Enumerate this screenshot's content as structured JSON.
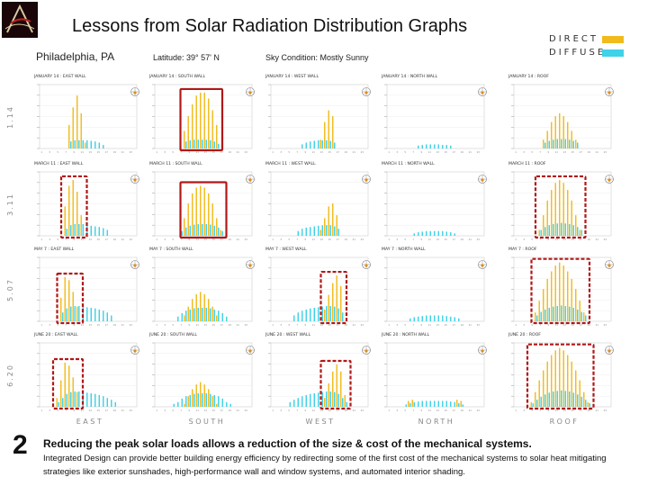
{
  "title": "Lessons from Solar Radiation Distribution Graphs",
  "header": {
    "city": "Philadelphia, PA",
    "latitude": "Latitude: 39° 57' N",
    "sky": "Sky Condition: Mostly Sunny"
  },
  "legend": [
    {
      "label": "DIRECT",
      "color": "#f2bb1d"
    },
    {
      "label": "DIFFUSE",
      "color": "#3fd2e8"
    }
  ],
  "row_labels": [
    "1.14",
    "3.11",
    "5.07",
    "6.20"
  ],
  "column_labels": [
    "EAST",
    "SOUTH",
    "WEST",
    "NORTH",
    "ROOF"
  ],
  "colors": {
    "direct": "#f2bb1d",
    "diffuse": "#3fd2e8",
    "highlight": "#b01818",
    "accent": "#7a1010"
  },
  "chart_data": {
    "type": "bar",
    "hours": [
      1,
      2,
      3,
      4,
      5,
      6,
      7,
      8,
      9,
      10,
      11,
      12,
      13,
      14,
      15,
      16,
      17,
      18,
      19,
      20,
      21,
      22,
      23,
      24
    ],
    "panels": [
      {
        "title": "JANUARY 14 : EAST WALL",
        "highlight": false,
        "direct": [
          0,
          0,
          0,
          0,
          0,
          0,
          0,
          0.4,
          0.7,
          0.9,
          0.6,
          0.1,
          0,
          0,
          0,
          0,
          0,
          0,
          0,
          0,
          0,
          0,
          0,
          0
        ],
        "diffuse": [
          0,
          0,
          0,
          0,
          0,
          0,
          0,
          0.12,
          0.14,
          0.14,
          0.14,
          0.14,
          0.13,
          0.12,
          0.1,
          0.06,
          0,
          0,
          0,
          0,
          0,
          0,
          0,
          0
        ]
      },
      {
        "title": "JANUARY 14 : SOUTH WALL",
        "highlight": true,
        "direct": [
          0,
          0,
          0,
          0,
          0,
          0,
          0,
          0.3,
          0.55,
          0.75,
          0.9,
          0.95,
          0.95,
          0.85,
          0.65,
          0.4,
          0,
          0,
          0,
          0,
          0,
          0,
          0,
          0
        ],
        "diffuse": [
          0,
          0,
          0,
          0,
          0,
          0,
          0,
          0.12,
          0.14,
          0.15,
          0.15,
          0.15,
          0.15,
          0.14,
          0.12,
          0.08,
          0,
          0,
          0,
          0,
          0,
          0,
          0,
          0
        ]
      },
      {
        "title": "JANUARY 14 : WEST WALL",
        "highlight": false,
        "direct": [
          0,
          0,
          0,
          0,
          0,
          0,
          0,
          0,
          0,
          0,
          0,
          0,
          0.15,
          0.45,
          0.65,
          0.55,
          0,
          0,
          0,
          0,
          0,
          0,
          0,
          0
        ],
        "diffuse": [
          0,
          0,
          0,
          0,
          0,
          0,
          0,
          0.07,
          0.1,
          0.12,
          0.13,
          0.14,
          0.14,
          0.14,
          0.13,
          0.1,
          0,
          0,
          0,
          0,
          0,
          0,
          0,
          0
        ]
      },
      {
        "title": "JANUARY 14 : NORTH WALL",
        "highlight": false,
        "direct": [
          0,
          0,
          0,
          0,
          0,
          0,
          0,
          0,
          0,
          0,
          0,
          0,
          0,
          0,
          0,
          0,
          0,
          0,
          0,
          0,
          0,
          0,
          0,
          0
        ],
        "diffuse": [
          0,
          0,
          0,
          0,
          0,
          0,
          0,
          0.05,
          0.06,
          0.07,
          0.07,
          0.07,
          0.07,
          0.06,
          0.06,
          0.05,
          0,
          0,
          0,
          0,
          0,
          0,
          0,
          0
        ]
      },
      {
        "title": "JANUARY 14 : ROOF",
        "highlight": false,
        "direct": [
          0,
          0,
          0,
          0,
          0,
          0,
          0,
          0.15,
          0.3,
          0.45,
          0.55,
          0.6,
          0.55,
          0.45,
          0.3,
          0.15,
          0,
          0,
          0,
          0,
          0,
          0,
          0,
          0
        ],
        "diffuse": [
          0,
          0,
          0,
          0,
          0,
          0,
          0,
          0.1,
          0.13,
          0.15,
          0.16,
          0.16,
          0.16,
          0.15,
          0.13,
          0.1,
          0,
          0,
          0,
          0,
          0,
          0,
          0,
          0
        ]
      },
      {
        "title": "MARCH 11 : EAST WALL",
        "highlight": true,
        "direct": [
          0,
          0,
          0,
          0,
          0,
          0,
          0.5,
          0.85,
          0.95,
          0.75,
          0.35,
          0,
          0,
          0,
          0,
          0,
          0,
          0,
          0,
          0,
          0,
          0,
          0,
          0
        ],
        "diffuse": [
          0,
          0,
          0,
          0,
          0,
          0,
          0.12,
          0.18,
          0.2,
          0.2,
          0.2,
          0.18,
          0.17,
          0.16,
          0.15,
          0.13,
          0.1,
          0,
          0,
          0,
          0,
          0,
          0,
          0
        ]
      },
      {
        "title": "MARCH 11 : SOUTH WALL",
        "highlight": true,
        "direct": [
          0,
          0,
          0,
          0,
          0,
          0,
          0,
          0.3,
          0.55,
          0.72,
          0.82,
          0.85,
          0.82,
          0.72,
          0.55,
          0.3,
          0.1,
          0,
          0,
          0,
          0,
          0,
          0,
          0
        ],
        "diffuse": [
          0,
          0,
          0,
          0,
          0,
          0,
          0.08,
          0.14,
          0.17,
          0.19,
          0.2,
          0.2,
          0.2,
          0.19,
          0.17,
          0.14,
          0.08,
          0,
          0,
          0,
          0,
          0,
          0,
          0
        ]
      },
      {
        "title": "MARCH 11 : WEST WALL",
        "highlight": false,
        "direct": [
          0,
          0,
          0,
          0,
          0,
          0,
          0,
          0,
          0,
          0,
          0,
          0,
          0.1,
          0.3,
          0.5,
          0.55,
          0.35,
          0,
          0,
          0,
          0,
          0,
          0,
          0
        ],
        "diffuse": [
          0,
          0,
          0,
          0,
          0,
          0,
          0.08,
          0.12,
          0.14,
          0.15,
          0.16,
          0.17,
          0.18,
          0.18,
          0.18,
          0.16,
          0.12,
          0,
          0,
          0,
          0,
          0,
          0,
          0
        ]
      },
      {
        "title": "MARCH 11 : NORTH WALL",
        "highlight": false,
        "direct": [
          0,
          0,
          0,
          0,
          0,
          0,
          0,
          0,
          0,
          0,
          0,
          0,
          0,
          0,
          0,
          0,
          0,
          0,
          0,
          0,
          0,
          0,
          0,
          0
        ],
        "diffuse": [
          0,
          0,
          0,
          0,
          0,
          0,
          0.04,
          0.06,
          0.07,
          0.08,
          0.08,
          0.08,
          0.08,
          0.08,
          0.07,
          0.06,
          0.04,
          0,
          0,
          0,
          0,
          0,
          0,
          0
        ]
      },
      {
        "title": "MARCH 11 : ROOF",
        "highlight": true,
        "direct": [
          0,
          0,
          0,
          0,
          0,
          0,
          0.1,
          0.35,
          0.6,
          0.78,
          0.9,
          0.95,
          0.9,
          0.78,
          0.6,
          0.35,
          0.1,
          0,
          0,
          0,
          0,
          0,
          0,
          0
        ],
        "diffuse": [
          0,
          0,
          0,
          0,
          0,
          0,
          0.1,
          0.15,
          0.18,
          0.2,
          0.21,
          0.22,
          0.21,
          0.2,
          0.18,
          0.15,
          0.1,
          0,
          0,
          0,
          0,
          0,
          0,
          0
        ]
      },
      {
        "title": "MAY 7 : EAST WALL",
        "highlight": true,
        "direct": [
          0,
          0,
          0,
          0,
          0,
          0.4,
          0.75,
          0.7,
          0.5,
          0.25,
          0,
          0,
          0,
          0,
          0,
          0,
          0,
          0,
          0,
          0,
          0,
          0,
          0,
          0
        ],
        "diffuse": [
          0,
          0,
          0,
          0,
          0,
          0.15,
          0.22,
          0.25,
          0.26,
          0.26,
          0.25,
          0.24,
          0.23,
          0.22,
          0.2,
          0.18,
          0.15,
          0.1,
          0,
          0,
          0,
          0,
          0,
          0
        ]
      },
      {
        "title": "MAY 7 : SOUTH WALL",
        "highlight": false,
        "direct": [
          0,
          0,
          0,
          0,
          0,
          0,
          0,
          0.1,
          0.25,
          0.38,
          0.46,
          0.5,
          0.46,
          0.38,
          0.25,
          0.1,
          0,
          0,
          0,
          0,
          0,
          0,
          0,
          0
        ],
        "diffuse": [
          0,
          0,
          0,
          0,
          0,
          0.08,
          0.14,
          0.18,
          0.2,
          0.22,
          0.23,
          0.23,
          0.23,
          0.22,
          0.2,
          0.18,
          0.14,
          0.08,
          0,
          0,
          0,
          0,
          0,
          0
        ]
      },
      {
        "title": "MAY 7 : WEST WALL",
        "highlight": true,
        "direct": [
          0,
          0,
          0,
          0,
          0,
          0,
          0,
          0,
          0,
          0,
          0,
          0,
          0,
          0.2,
          0.45,
          0.65,
          0.78,
          0.6,
          0,
          0,
          0,
          0,
          0,
          0
        ],
        "diffuse": [
          0,
          0,
          0,
          0,
          0,
          0.1,
          0.15,
          0.18,
          0.2,
          0.22,
          0.23,
          0.24,
          0.25,
          0.26,
          0.26,
          0.25,
          0.22,
          0.15,
          0,
          0,
          0,
          0,
          0,
          0
        ]
      },
      {
        "title": "MAY 7 : NORTH WALL",
        "highlight": false,
        "direct": [
          0,
          0,
          0,
          0,
          0,
          0,
          0,
          0,
          0,
          0,
          0,
          0,
          0,
          0,
          0,
          0,
          0,
          0,
          0,
          0,
          0,
          0,
          0,
          0
        ],
        "diffuse": [
          0,
          0,
          0,
          0,
          0,
          0.05,
          0.07,
          0.08,
          0.09,
          0.1,
          0.1,
          0.1,
          0.1,
          0.1,
          0.09,
          0.08,
          0.07,
          0.05,
          0,
          0,
          0,
          0,
          0,
          0
        ]
      },
      {
        "title": "MAY 7 : ROOF",
        "highlight": true,
        "direct": [
          0,
          0,
          0,
          0,
          0,
          0.15,
          0.35,
          0.55,
          0.72,
          0.85,
          0.95,
          1.0,
          0.95,
          0.85,
          0.72,
          0.55,
          0.35,
          0.15,
          0,
          0,
          0,
          0,
          0,
          0
        ],
        "diffuse": [
          0,
          0,
          0,
          0,
          0,
          0.1,
          0.16,
          0.2,
          0.23,
          0.25,
          0.26,
          0.27,
          0.26,
          0.25,
          0.23,
          0.2,
          0.16,
          0.1,
          0,
          0,
          0,
          0,
          0,
          0
        ]
      },
      {
        "title": "JUNE 20 : EAST WALL",
        "highlight": true,
        "direct": [
          0,
          0,
          0,
          0,
          0.15,
          0.45,
          0.75,
          0.7,
          0.5,
          0.25,
          0,
          0,
          0,
          0,
          0,
          0,
          0,
          0,
          0,
          0,
          0,
          0,
          0,
          0
        ],
        "diffuse": [
          0,
          0,
          0,
          0,
          0.08,
          0.15,
          0.22,
          0.25,
          0.26,
          0.26,
          0.25,
          0.24,
          0.23,
          0.22,
          0.2,
          0.18,
          0.15,
          0.12,
          0.08,
          0,
          0,
          0,
          0,
          0
        ]
      },
      {
        "title": "JUNE 20 : SOUTH WALL",
        "highlight": false,
        "direct": [
          0,
          0,
          0,
          0,
          0,
          0,
          0,
          0.05,
          0.18,
          0.3,
          0.38,
          0.42,
          0.38,
          0.3,
          0.18,
          0.05,
          0,
          0,
          0,
          0,
          0,
          0,
          0,
          0
        ],
        "diffuse": [
          0,
          0,
          0,
          0,
          0.05,
          0.08,
          0.14,
          0.18,
          0.2,
          0.22,
          0.23,
          0.23,
          0.23,
          0.22,
          0.2,
          0.18,
          0.14,
          0.08,
          0.05,
          0,
          0,
          0,
          0,
          0
        ]
      },
      {
        "title": "JUNE 20 : WEST WALL",
        "highlight": true,
        "direct": [
          0,
          0,
          0,
          0,
          0,
          0,
          0,
          0,
          0,
          0,
          0,
          0,
          0,
          0.15,
          0.4,
          0.6,
          0.72,
          0.6,
          0.2,
          0,
          0,
          0,
          0,
          0
        ],
        "diffuse": [
          0,
          0,
          0,
          0,
          0.08,
          0.12,
          0.15,
          0.18,
          0.2,
          0.22,
          0.23,
          0.24,
          0.25,
          0.26,
          0.26,
          0.25,
          0.22,
          0.15,
          0.08,
          0,
          0,
          0,
          0,
          0
        ]
      },
      {
        "title": "JUNE 20 : NORTH WALL",
        "highlight": false,
        "direct": [
          0,
          0,
          0,
          0,
          0,
          0.1,
          0.12,
          0,
          0,
          0,
          0,
          0,
          0,
          0,
          0,
          0,
          0,
          0.12,
          0.1,
          0,
          0,
          0,
          0,
          0
        ],
        "diffuse": [
          0,
          0,
          0,
          0,
          0.04,
          0.06,
          0.08,
          0.09,
          0.1,
          0.1,
          0.1,
          0.1,
          0.1,
          0.1,
          0.1,
          0.09,
          0.08,
          0.06,
          0.04,
          0,
          0,
          0,
          0,
          0
        ]
      },
      {
        "title": "JUNE 20 : ROOF",
        "highlight": true,
        "direct": [
          0,
          0,
          0,
          0,
          0.08,
          0.25,
          0.45,
          0.62,
          0.77,
          0.88,
          0.96,
          1.0,
          0.96,
          0.88,
          0.77,
          0.62,
          0.45,
          0.25,
          0.08,
          0,
          0,
          0,
          0,
          0
        ],
        "diffuse": [
          0,
          0,
          0,
          0,
          0.06,
          0.12,
          0.17,
          0.21,
          0.24,
          0.26,
          0.27,
          0.28,
          0.27,
          0.26,
          0.24,
          0.21,
          0.17,
          0.12,
          0.06,
          0,
          0,
          0,
          0,
          0
        ]
      }
    ]
  },
  "footer": {
    "number": "2",
    "headline": "Reducing the peak solar loads allows a reduction of the size & cost of the mechanical systems.",
    "body": "Integrated Design can provide better building energy efficiency by redirecting some of the first cost of the mechanical systems to solar heat mitigating strategies like exterior sunshades, high-performance wall and window systems, and automated interior shading."
  }
}
